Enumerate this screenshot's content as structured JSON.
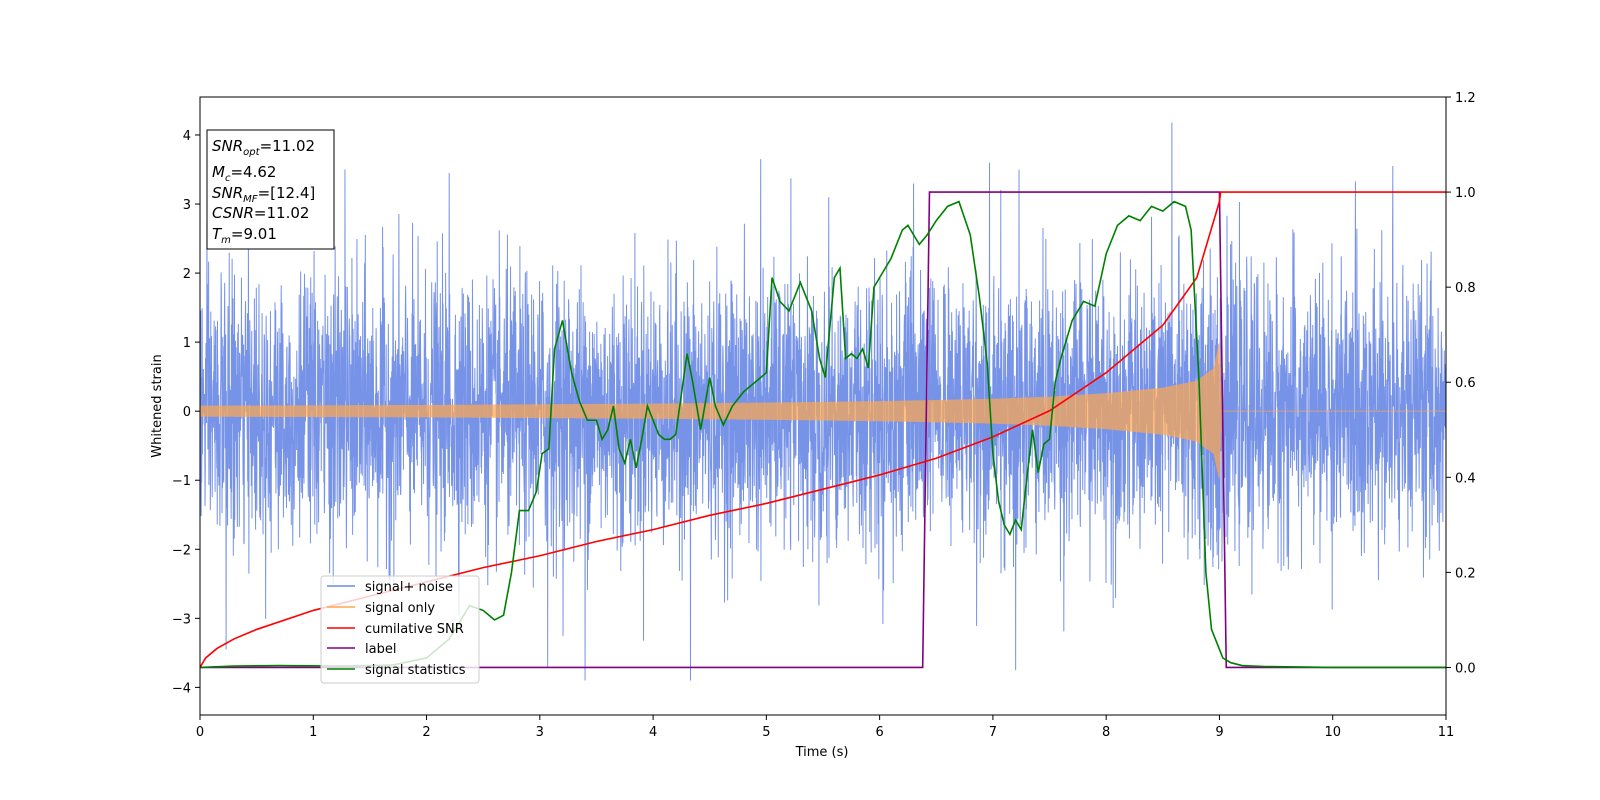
{
  "chart_data": {
    "type": "line",
    "title": "",
    "xlabel": "Time (s)",
    "ylabel": "Whitened strain",
    "xlim": [
      0,
      11
    ],
    "ylim": [
      -4.4,
      4.55
    ],
    "y2lim": [
      -0.1,
      1.2
    ],
    "x_ticks": [
      "0",
      "1",
      "2",
      "3",
      "4",
      "5",
      "6",
      "7",
      "8",
      "9",
      "10",
      "11"
    ],
    "y_ticks": [
      "−4",
      "−3",
      "−2",
      "−1",
      "0",
      "1",
      "2",
      "3",
      "4"
    ],
    "y2_ticks": [
      "0.0",
      "0.2",
      "0.4",
      "0.6",
      "0.8",
      "1.0",
      "1.2"
    ],
    "grid": false,
    "legend_placement": "lower-left",
    "info_box": {
      "snr_opt": "=11.02",
      "mc": "=4.62",
      "snr_mf": "=[12.4]",
      "csnr": "=11.02",
      "tm": "=9.01"
    },
    "series": [
      {
        "name": "signal+ noise",
        "axis": "left",
        "color": "#6b8ae6",
        "style": "dense noise, roughly Gaussian about 0 with amplitude about ±1.3 typical and peaks to ±3.6",
        "peaks": [
          {
            "x": 4.95,
            "y": 3.65
          },
          {
            "x": 8.58,
            "y": 4.18
          },
          {
            "x": 6.97,
            "y": 3.6
          },
          {
            "x": 3.4,
            "y": -3.9
          },
          {
            "x": 4.33,
            "y": -3.9
          },
          {
            "x": 0.23,
            "y": -3.45
          },
          {
            "x": 7.2,
            "y": -3.75
          },
          {
            "x": 10.53,
            "y": 3.55
          },
          {
            "x": 3.07,
            "y": -3.7
          },
          {
            "x": 5.55,
            "y": 3.1
          },
          {
            "x": 1.28,
            "y": 3.5
          },
          {
            "x": 2.2,
            "y": 3.45
          }
        ]
      },
      {
        "name": "signal only",
        "axis": "left",
        "color": "#ffa64d",
        "envelope": {
          "x": [
            0,
            1,
            2,
            3,
            4,
            5,
            6,
            7,
            7.5,
            8,
            8.5,
            8.8,
            8.95,
            9.0,
            9.02,
            11
          ],
          "amp": [
            0.08,
            0.085,
            0.09,
            0.1,
            0.11,
            0.125,
            0.145,
            0.18,
            0.21,
            0.26,
            0.34,
            0.44,
            0.62,
            1.0,
            0.0,
            0.0
          ]
        }
      },
      {
        "name": "cumilative SNR",
        "axis": "right",
        "color": "#ff0000",
        "x": [
          0,
          0.05,
          0.15,
          0.3,
          0.5,
          1,
          1.5,
          2,
          2.5,
          3,
          3.5,
          4,
          4.5,
          5,
          5.5,
          6,
          6.5,
          7,
          7.5,
          8,
          8.5,
          8.8,
          9.0,
          9.01,
          11
        ],
        "y": [
          0.0,
          0.02,
          0.04,
          0.06,
          0.08,
          0.12,
          0.15,
          0.18,
          0.21,
          0.235,
          0.265,
          0.29,
          0.32,
          0.345,
          0.375,
          0.405,
          0.44,
          0.485,
          0.54,
          0.62,
          0.72,
          0.82,
          0.98,
          1.0,
          1.0
        ]
      },
      {
        "name": "label",
        "axis": "right",
        "color": "#800080",
        "x": [
          0,
          6.38,
          6.44,
          9.0,
          9.06,
          11
        ],
        "y": [
          0,
          0,
          1,
          1,
          0,
          0
        ]
      },
      {
        "name": "signal statistics",
        "axis": "right",
        "color": "#008000",
        "x": [
          0,
          0.3,
          0.7,
          1.2,
          1.7,
          2.0,
          2.2,
          2.38,
          2.5,
          2.6,
          2.68,
          2.75,
          2.82,
          2.9,
          2.97,
          3.02,
          3.08,
          3.13,
          3.2,
          3.28,
          3.35,
          3.42,
          3.5,
          3.55,
          3.6,
          3.65,
          3.7,
          3.75,
          3.8,
          3.85,
          3.9,
          3.95,
          4.0,
          4.05,
          4.1,
          4.15,
          4.2,
          4.3,
          4.35,
          4.42,
          4.5,
          4.55,
          4.62,
          4.7,
          4.8,
          4.9,
          5.0,
          5.05,
          5.12,
          5.2,
          5.3,
          5.4,
          5.47,
          5.52,
          5.6,
          5.65,
          5.7,
          5.75,
          5.8,
          5.85,
          5.9,
          5.95,
          6.0,
          6.1,
          6.2,
          6.25,
          6.3,
          6.35,
          6.42,
          6.5,
          6.6,
          6.7,
          6.8,
          6.88,
          6.95,
          7.0,
          7.05,
          7.1,
          7.15,
          7.2,
          7.25,
          7.3,
          7.35,
          7.4,
          7.45,
          7.5,
          7.55,
          7.6,
          7.7,
          7.8,
          7.9,
          8.0,
          8.1,
          8.2,
          8.3,
          8.4,
          8.5,
          8.6,
          8.7,
          8.75,
          8.82,
          8.88,
          8.93,
          8.98,
          9.03,
          9.1,
          9.2,
          9.4,
          10.0,
          11.0
        ],
        "y": [
          0.0,
          0.003,
          0.004,
          0.003,
          0.005,
          0.02,
          0.06,
          0.13,
          0.12,
          0.1,
          0.11,
          0.2,
          0.33,
          0.33,
          0.37,
          0.45,
          0.46,
          0.67,
          0.73,
          0.62,
          0.56,
          0.52,
          0.52,
          0.48,
          0.5,
          0.55,
          0.46,
          0.43,
          0.48,
          0.42,
          0.48,
          0.55,
          0.52,
          0.49,
          0.48,
          0.48,
          0.49,
          0.66,
          0.6,
          0.5,
          0.61,
          0.55,
          0.51,
          0.55,
          0.58,
          0.6,
          0.62,
          0.82,
          0.77,
          0.75,
          0.81,
          0.75,
          0.65,
          0.61,
          0.82,
          0.84,
          0.65,
          0.66,
          0.65,
          0.67,
          0.63,
          0.8,
          0.82,
          0.86,
          0.92,
          0.93,
          0.91,
          0.89,
          0.91,
          0.94,
          0.97,
          0.98,
          0.91,
          0.78,
          0.64,
          0.45,
          0.35,
          0.3,
          0.28,
          0.31,
          0.29,
          0.4,
          0.5,
          0.41,
          0.47,
          0.48,
          0.6,
          0.65,
          0.73,
          0.77,
          0.76,
          0.87,
          0.93,
          0.95,
          0.94,
          0.97,
          0.96,
          0.98,
          0.97,
          0.92,
          0.6,
          0.2,
          0.08,
          0.05,
          0.02,
          0.01,
          0.004,
          0.002,
          0.0,
          0.0
        ]
      }
    ]
  }
}
